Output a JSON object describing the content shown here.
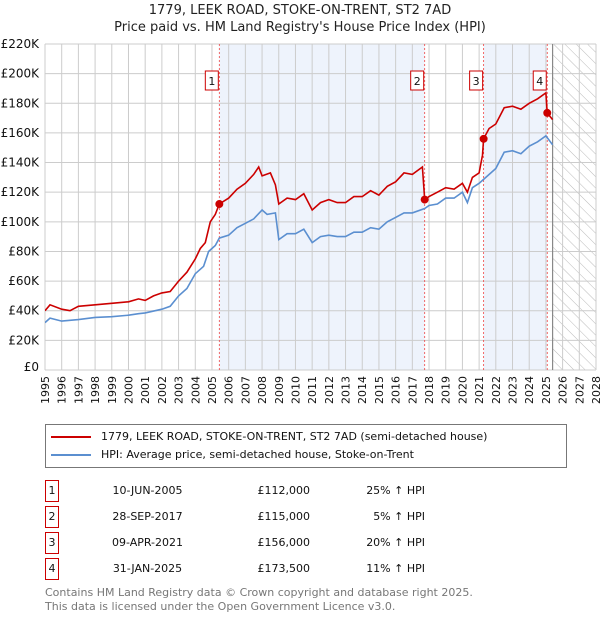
{
  "title": "1779, LEEK ROAD, STOKE-ON-TRENT, ST2 7AD",
  "subtitle": "Price paid vs. HM Land Registry's House Price Index (HPI)",
  "legend": {
    "property": "1779, LEEK ROAD, STOKE-ON-TRENT, ST2 7AD (semi-detached house)",
    "hpi": "HPI: Average price, semi-detached house, Stoke-on-Trent"
  },
  "colors": {
    "property": "#cc0000",
    "hpi": "#5b8fd0",
    "shade": "#eef3fc"
  },
  "transactions": [
    {
      "num": "1",
      "date": "10-JUN-2005",
      "price": "£112,000",
      "pct": "25% ↑ HPI"
    },
    {
      "num": "2",
      "date": "28-SEP-2017",
      "price": "£115,000",
      "pct": "5% ↑ HPI"
    },
    {
      "num": "3",
      "date": "09-APR-2021",
      "price": "£156,000",
      "pct": "20% ↑ HPI"
    },
    {
      "num": "4",
      "date": "31-JAN-2025",
      "price": "£173,500",
      "pct": "11% ↑ HPI"
    }
  ],
  "footer": [
    "Contains HM Land Registry data © Crown copyright and database right 2025.",
    "This data is licensed under the Open Government Licence v3.0."
  ],
  "chart_data": {
    "type": "line",
    "xlim": [
      1995,
      2028
    ],
    "ylim": [
      0,
      220000
    ],
    "yticks": [
      0,
      20000,
      40000,
      60000,
      80000,
      100000,
      120000,
      140000,
      160000,
      180000,
      200000,
      220000
    ],
    "ytick_labels": [
      "£0",
      "£20K",
      "£40K",
      "£60K",
      "£80K",
      "£100K",
      "£120K",
      "£140K",
      "£160K",
      "£180K",
      "£200K",
      "£220K"
    ],
    "xticks": [
      1995,
      1996,
      1997,
      1998,
      1999,
      2000,
      2001,
      2002,
      2003,
      2004,
      2005,
      2006,
      2007,
      2008,
      2009,
      2010,
      2011,
      2012,
      2013,
      2014,
      2015,
      2016,
      2017,
      2018,
      2019,
      2020,
      2021,
      2022,
      2023,
      2024,
      2025,
      2026,
      2027,
      2028
    ],
    "grid": true,
    "sales": [
      {
        "label": "1",
        "x": 2005.44,
        "y": 112000
      },
      {
        "label": "2",
        "x": 2017.74,
        "y": 115000
      },
      {
        "label": "3",
        "x": 2021.27,
        "y": 156000
      },
      {
        "label": "4",
        "x": 2025.08,
        "y": 173500
      }
    ],
    "shaded_ranges": [
      [
        2005.44,
        2017.74
      ],
      [
        2021.27,
        2025.08
      ]
    ],
    "forecast_from": 2025.4,
    "series": [
      {
        "name": "1779, LEEK ROAD, STOKE-ON-TRENT, ST2 7AD (semi-detached house)",
        "x": [
          1995,
          1995.3,
          1996,
          1996.5,
          1997,
          1998,
          1999,
          2000,
          2000.6,
          2001,
          2001.5,
          2002,
          2002.5,
          2003,
          2003.5,
          2004,
          2004.3,
          2004.6,
          2004.9,
          2005.2,
          2005.44,
          2006,
          2006.5,
          2007,
          2007.5,
          2007.8,
          2008,
          2008.5,
          2008.8,
          2009,
          2009.5,
          2010,
          2010.5,
          2011,
          2011.5,
          2012,
          2012.5,
          2013,
          2013.5,
          2014,
          2014.5,
          2015,
          2015.5,
          2016,
          2016.5,
          2017,
          2017.6,
          2017.74,
          2018,
          2018.5,
          2019,
          2019.5,
          2020,
          2020.3,
          2020.6,
          2021,
          2021.2,
          2021.27,
          2021.6,
          2022,
          2022.5,
          2023,
          2023.5,
          2024,
          2024.5,
          2025,
          2025.08,
          2025.4
        ],
        "y": [
          40000,
          44000,
          41000,
          40000,
          43000,
          44000,
          45000,
          46000,
          48000,
          47000,
          50000,
          52000,
          53000,
          60000,
          66000,
          75000,
          82000,
          86000,
          100000,
          105000,
          112000,
          116000,
          122000,
          126000,
          132000,
          137000,
          131000,
          133000,
          125000,
          112000,
          116000,
          115000,
          119000,
          108000,
          113000,
          115000,
          113000,
          113000,
          117000,
          117000,
          121000,
          118000,
          124000,
          127000,
          133000,
          132000,
          137000,
          115000,
          117000,
          120000,
          123000,
          122000,
          126000,
          120000,
          130000,
          133000,
          145000,
          156000,
          163000,
          166000,
          177000,
          178000,
          176000,
          180000,
          183000,
          187000,
          173500,
          169000
        ]
      },
      {
        "name": "HPI: Average price, semi-detached house, Stoke-on-Trent",
        "x": [
          1995,
          1995.3,
          1996,
          1997,
          1998,
          1999,
          2000,
          2000.6,
          2001,
          2002,
          2002.5,
          2003,
          2003.5,
          2004,
          2004.5,
          2004.8,
          2005.2,
          2005.44,
          2006,
          2006.5,
          2007,
          2007.5,
          2008,
          2008.3,
          2008.8,
          2009,
          2009.5,
          2010,
          2010.5,
          2011,
          2011.5,
          2012,
          2012.5,
          2013,
          2013.5,
          2014,
          2014.5,
          2015,
          2015.5,
          2016,
          2016.5,
          2017,
          2017.74,
          2018,
          2018.5,
          2019,
          2019.5,
          2020,
          2020.3,
          2020.6,
          2021,
          2021.5,
          2022,
          2022.5,
          2023,
          2023.5,
          2024,
          2024.5,
          2025,
          2025.4
        ],
        "y": [
          32000,
          35000,
          33000,
          34000,
          35500,
          36000,
          37000,
          38000,
          38500,
          41000,
          43000,
          50000,
          55000,
          65000,
          70000,
          80000,
          84000,
          89000,
          91000,
          96000,
          99000,
          102000,
          108000,
          105000,
          106000,
          88000,
          92000,
          92000,
          95000,
          86000,
          90000,
          91000,
          90000,
          90000,
          93000,
          93000,
          96000,
          95000,
          100000,
          103000,
          106000,
          106000,
          109000,
          111000,
          112000,
          116000,
          116000,
          120000,
          113000,
          123000,
          126000,
          131000,
          136000,
          147000,
          148000,
          146000,
          151000,
          154000,
          158000,
          152000
        ]
      }
    ]
  }
}
